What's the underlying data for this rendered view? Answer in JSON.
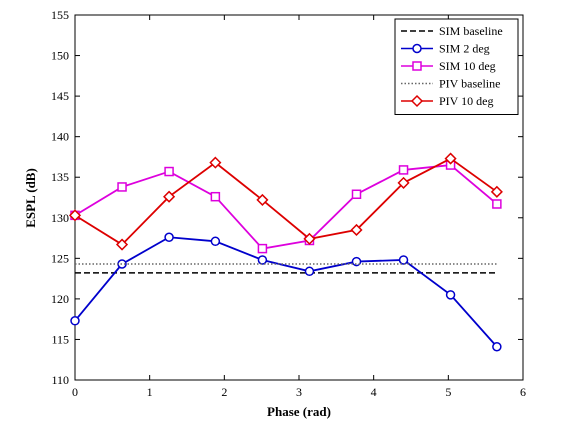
{
  "chart_data": {
    "type": "line",
    "xlabel": "Phase (rad)",
    "ylabel": "ESPL (dB)",
    "xlim": [
      0,
      6
    ],
    "ylim": [
      110,
      155
    ],
    "xticks": [
      0,
      1,
      2,
      3,
      4,
      5,
      6
    ],
    "yticks": [
      110,
      115,
      120,
      125,
      130,
      135,
      140,
      145,
      150,
      155
    ],
    "legend_position": "top-right",
    "grid": false,
    "series": [
      {
        "name": "SIM baseline",
        "style": "dashed",
        "color": "#000000",
        "marker": "none",
        "x": [
          0,
          5.65
        ],
        "y": [
          123.2,
          123.2
        ]
      },
      {
        "name": "SIM 2 deg",
        "style": "solid",
        "color": "#0000cc",
        "marker": "circle",
        "x": [
          0,
          0.63,
          1.26,
          1.88,
          2.51,
          3.14,
          3.77,
          4.4,
          5.03,
          5.65
        ],
        "y": [
          117.3,
          124.3,
          127.6,
          127.1,
          124.8,
          123.4,
          124.6,
          124.8,
          120.5,
          114.1
        ]
      },
      {
        "name": "SIM 10 deg",
        "style": "solid",
        "color": "#dd00dd",
        "marker": "square",
        "x": [
          0,
          0.63,
          1.26,
          1.88,
          2.51,
          3.14,
          3.77,
          4.4,
          5.03,
          5.65
        ],
        "y": [
          130.3,
          133.8,
          135.7,
          132.6,
          126.2,
          127.2,
          132.9,
          135.9,
          136.5,
          131.7
        ]
      },
      {
        "name": "PIV baseline",
        "style": "dotted",
        "color": "#666666",
        "marker": "none",
        "x": [
          0,
          5.65
        ],
        "y": [
          124.3,
          124.3
        ]
      },
      {
        "name": "PIV 10 deg",
        "style": "solid",
        "color": "#dd0000",
        "marker": "diamond",
        "x": [
          0,
          0.63,
          1.26,
          1.88,
          2.51,
          3.14,
          3.77,
          4.4,
          5.03,
          5.65
        ],
        "y": [
          130.3,
          126.7,
          132.6,
          136.8,
          132.2,
          127.4,
          128.5,
          134.3,
          137.3,
          133.2
        ]
      }
    ]
  }
}
